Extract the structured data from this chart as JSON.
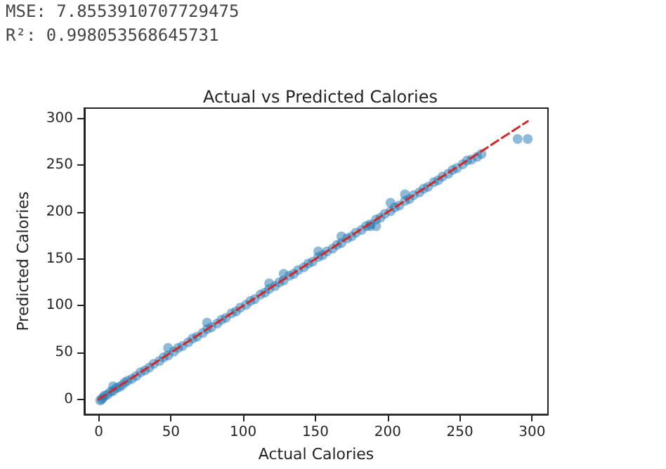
{
  "chart_data": {
    "type": "scatter",
    "title": "Actual vs Predicted Calories",
    "xlabel": "Actual Calories",
    "ylabel": "Predicted Calories",
    "annotations": [
      "MSE: 7.8553910707729475",
      "R²: 0.998053568645731"
    ],
    "xlim": [
      -10,
      311
    ],
    "ylim": [
      -16,
      311
    ],
    "xticks": [
      0,
      50,
      100,
      150,
      200,
      250,
      300
    ],
    "yticks": [
      0,
      50,
      100,
      150,
      200,
      250,
      300
    ],
    "grid": false,
    "marker": "circle",
    "series": [
      {
        "color": "#1f77b4",
        "x": [
          1,
          2,
          3,
          4,
          6,
          8,
          10,
          12,
          14,
          16,
          18,
          20,
          23,
          26,
          29,
          32,
          35,
          38,
          42,
          45,
          48,
          52,
          55,
          58,
          62,
          65,
          68,
          72,
          75,
          78,
          82,
          85,
          88,
          92,
          95,
          98,
          102,
          105,
          108,
          112,
          115,
          118,
          122,
          125,
          128,
          132,
          135,
          138,
          142,
          145,
          148,
          152,
          155,
          158,
          162,
          165,
          168,
          172,
          175,
          178,
          182,
          185,
          188,
          192,
          195,
          198,
          202,
          205,
          208,
          212,
          215,
          218,
          222,
          225,
          228,
          232,
          235,
          238,
          242,
          245,
          248,
          252,
          255,
          258,
          262,
          265,
          290,
          297,
          10,
          48,
          75,
          118,
          128,
          152,
          168,
          188,
          192,
          202,
          212
        ],
        "values": [
          -1,
          0,
          2,
          4,
          5,
          8,
          9,
          12,
          13,
          15,
          18,
          20,
          22,
          25,
          29,
          31,
          34,
          38,
          41,
          45,
          47,
          51,
          55,
          57,
          61,
          65,
          67,
          71,
          75,
          77,
          81,
          85,
          87,
          92,
          94,
          98,
          101,
          105,
          107,
          112,
          114,
          118,
          121,
          125,
          127,
          132,
          134,
          138,
          141,
          145,
          147,
          152,
          154,
          158,
          161,
          165,
          167,
          172,
          174,
          178,
          181,
          185,
          187,
          192,
          194,
          198,
          201,
          205,
          207,
          212,
          214,
          218,
          221,
          225,
          227,
          232,
          234,
          238,
          241,
          245,
          247,
          251,
          255,
          256,
          259,
          262,
          278,
          278,
          14,
          55,
          82,
          124,
          134,
          158,
          174,
          185,
          185,
          210,
          219
        ]
      },
      {
        "type": "line",
        "color": "#d62728",
        "line_style": "dashed",
        "marker": "none",
        "x": [
          0,
          297
        ],
        "values": [
          0,
          297
        ]
      }
    ]
  }
}
